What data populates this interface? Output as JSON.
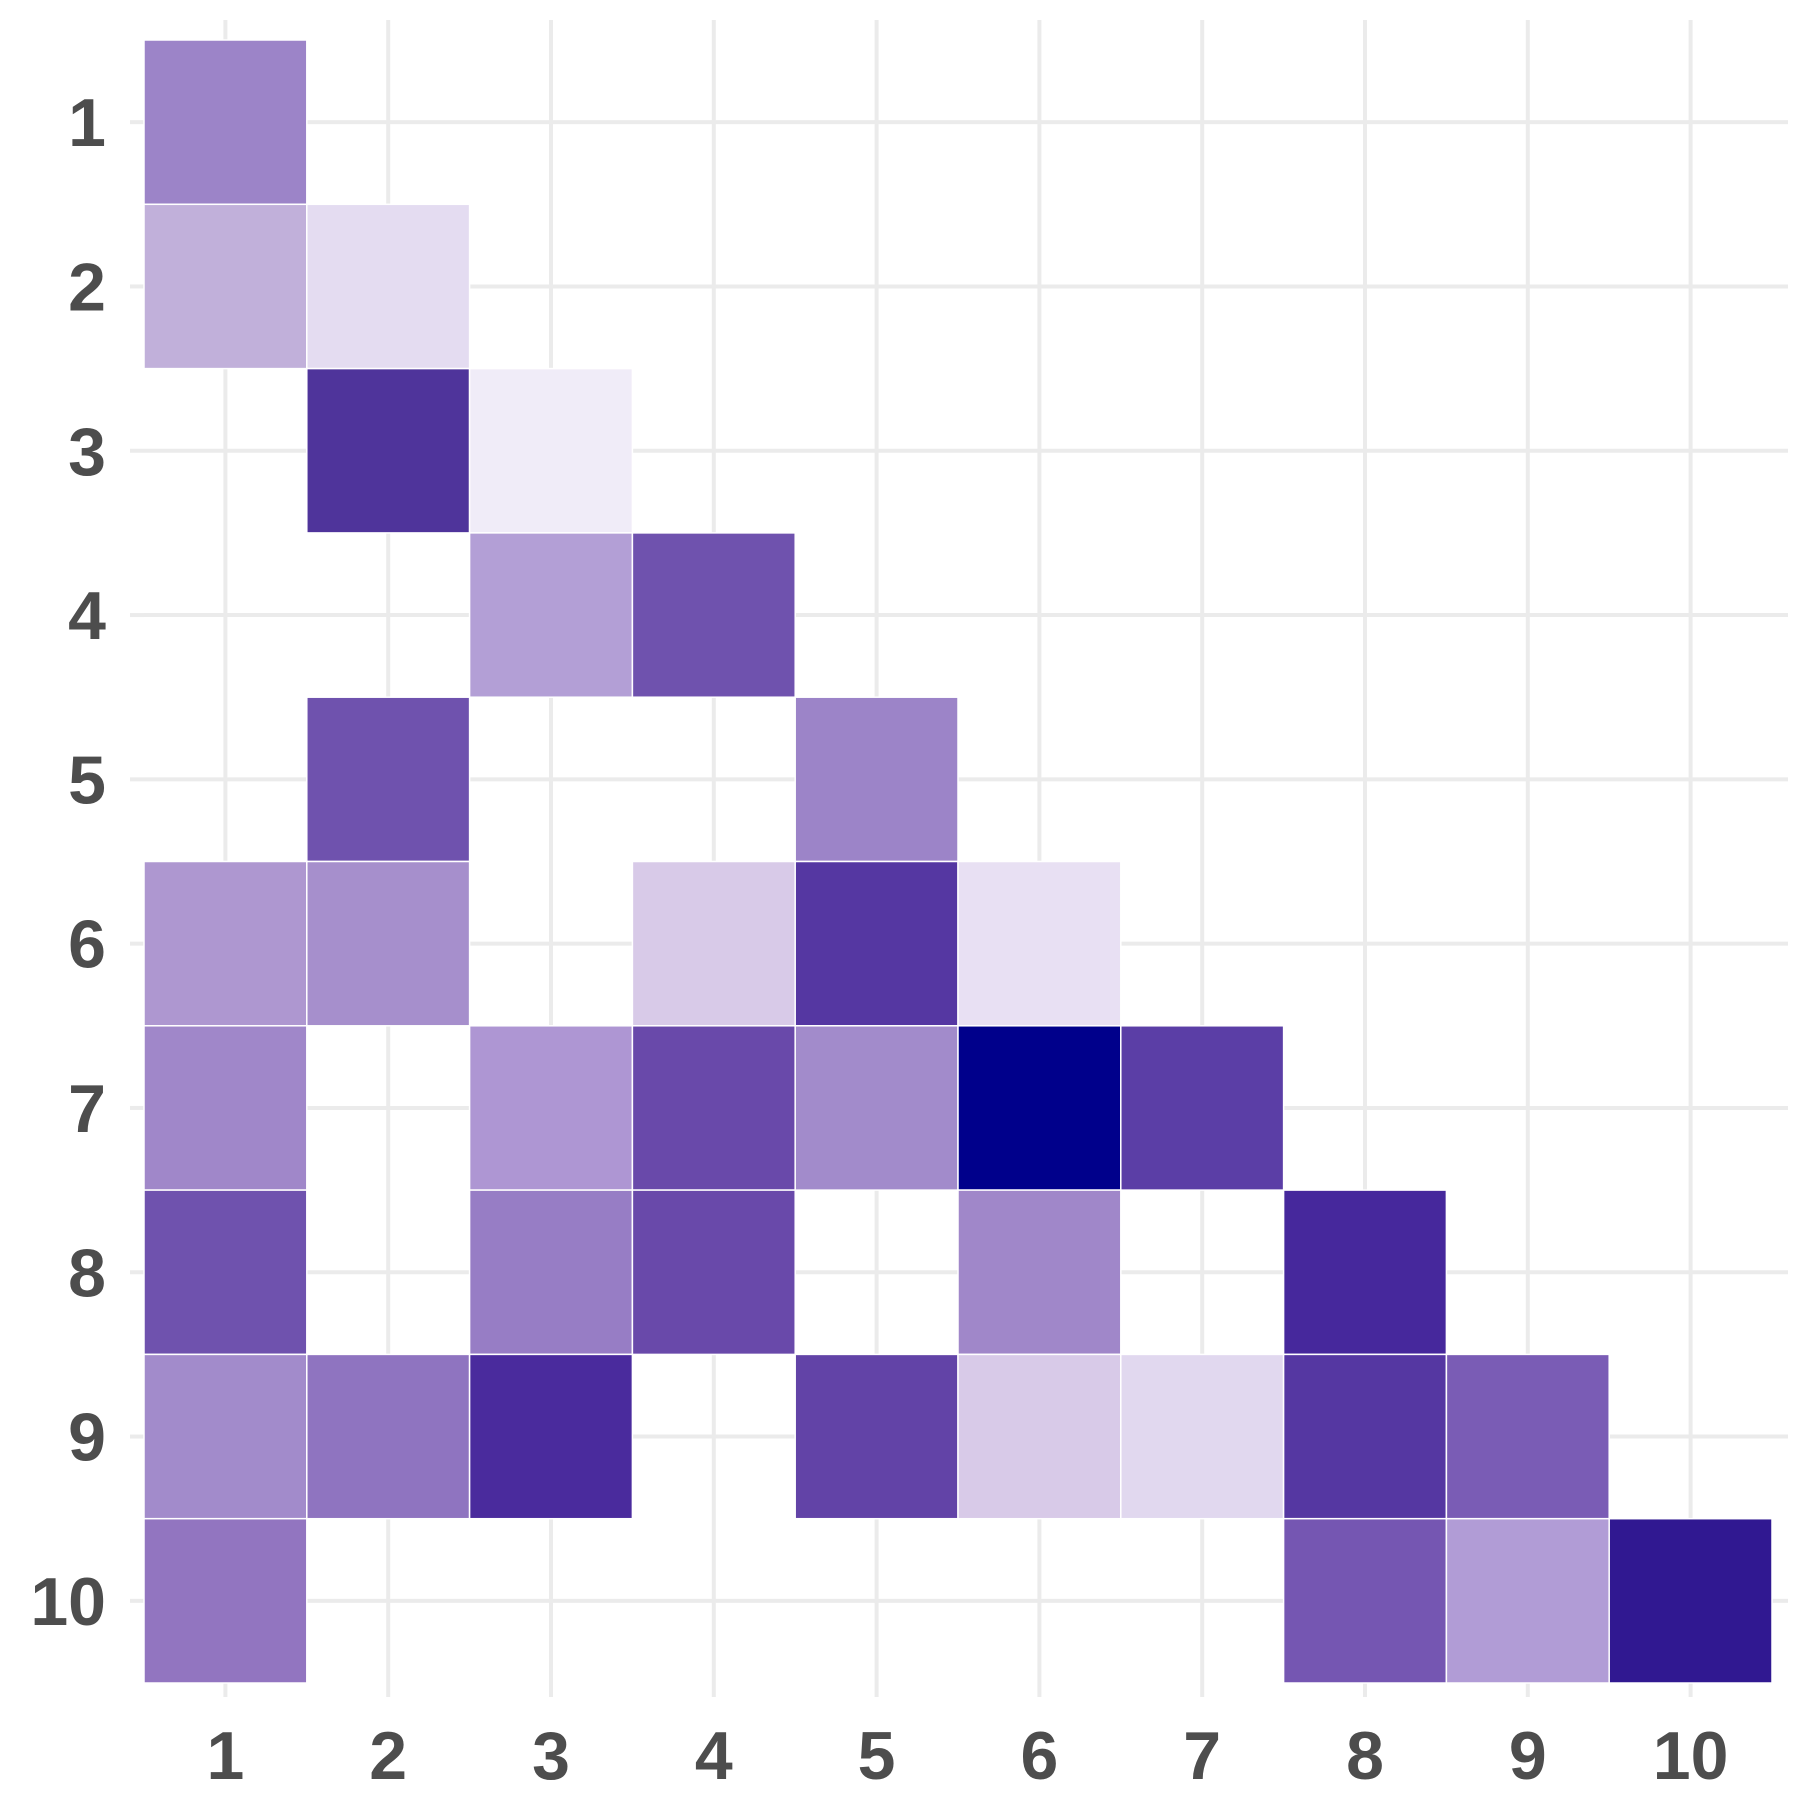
{
  "chart_data": {
    "type": "heatmap",
    "title": "",
    "xlabel": "",
    "ylabel": "",
    "x_categories": [
      "1",
      "2",
      "3",
      "4",
      "5",
      "6",
      "7",
      "8",
      "9",
      "10"
    ],
    "y_categories": [
      "1",
      "2",
      "3",
      "4",
      "5",
      "6",
      "7",
      "8",
      "9",
      "10"
    ],
    "grid": true,
    "legend": "none",
    "colors": {
      "low": "#ffffff",
      "high": "#00008b"
    },
    "cells": [
      {
        "x": "1",
        "y": "1",
        "value": 0.47,
        "color": "#9c84c8"
      },
      {
        "x": "1",
        "y": "2",
        "value": 0.3,
        "color": "#c1b0da"
      },
      {
        "x": "2",
        "y": "2",
        "value": 0.12,
        "color": "#e4dcf1"
      },
      {
        "x": "2",
        "y": "3",
        "value": 0.78,
        "color": "#4f349b"
      },
      {
        "x": "3",
        "y": "3",
        "value": 0.06,
        "color": "#f0ecf8"
      },
      {
        "x": "3",
        "y": "4",
        "value": 0.36,
        "color": "#b39fd6"
      },
      {
        "x": "4",
        "y": "4",
        "value": 0.64,
        "color": "#6f52ae"
      },
      {
        "x": "2",
        "y": "5",
        "value": 0.64,
        "color": "#6f52ae"
      },
      {
        "x": "5",
        "y": "5",
        "value": 0.47,
        "color": "#9c84c8"
      },
      {
        "x": "1",
        "y": "6",
        "value": 0.4,
        "color": "#ae97d0"
      },
      {
        "x": "2",
        "y": "6",
        "value": 0.43,
        "color": "#a68fcc"
      },
      {
        "x": "4",
        "y": "6",
        "value": 0.18,
        "color": "#d8cae8"
      },
      {
        "x": "5",
        "y": "6",
        "value": 0.76,
        "color": "#5537a2"
      },
      {
        "x": "6",
        "y": "6",
        "value": 0.1,
        "color": "#e8e0f3"
      },
      {
        "x": "1",
        "y": "7",
        "value": 0.46,
        "color": "#a087c9"
      },
      {
        "x": "3",
        "y": "7",
        "value": 0.41,
        "color": "#ae96d3"
      },
      {
        "x": "4",
        "y": "7",
        "value": 0.68,
        "color": "#6949aa"
      },
      {
        "x": "5",
        "y": "7",
        "value": 0.44,
        "color": "#a28bcb"
      },
      {
        "x": "6",
        "y": "7",
        "value": 1.0,
        "color": "#00008b"
      },
      {
        "x": "7",
        "y": "7",
        "value": 0.72,
        "color": "#5b3ea6"
      },
      {
        "x": "1",
        "y": "8",
        "value": 0.64,
        "color": "#6f52ae"
      },
      {
        "x": "3",
        "y": "8",
        "value": 0.5,
        "color": "#977dc5"
      },
      {
        "x": "4",
        "y": "8",
        "value": 0.68,
        "color": "#6949aa"
      },
      {
        "x": "6",
        "y": "8",
        "value": 0.46,
        "color": "#a087c9"
      },
      {
        "x": "8",
        "y": "8",
        "value": 0.82,
        "color": "#46289c"
      },
      {
        "x": "1",
        "y": "9",
        "value": 0.44,
        "color": "#a28bcb"
      },
      {
        "x": "2",
        "y": "9",
        "value": 0.52,
        "color": "#8f74c0"
      },
      {
        "x": "3",
        "y": "9",
        "value": 0.82,
        "color": "#4a2b9d"
      },
      {
        "x": "5",
        "y": "9",
        "value": 0.7,
        "color": "#6243a7"
      },
      {
        "x": "6",
        "y": "9",
        "value": 0.18,
        "color": "#d8cae8"
      },
      {
        "x": "7",
        "y": "9",
        "value": 0.14,
        "color": "#e1d8ef"
      },
      {
        "x": "8",
        "y": "9",
        "value": 0.76,
        "color": "#5537a2"
      },
      {
        "x": "9",
        "y": "9",
        "value": 0.6,
        "color": "#7a5cb5"
      },
      {
        "x": "1",
        "y": "10",
        "value": 0.5,
        "color": "#9275c0"
      },
      {
        "x": "8",
        "y": "10",
        "value": 0.62,
        "color": "#7556b2"
      },
      {
        "x": "9",
        "y": "10",
        "value": 0.38,
        "color": "#b19cd6"
      },
      {
        "x": "10",
        "y": "10",
        "value": 0.88,
        "color": "#301891"
      }
    ]
  }
}
